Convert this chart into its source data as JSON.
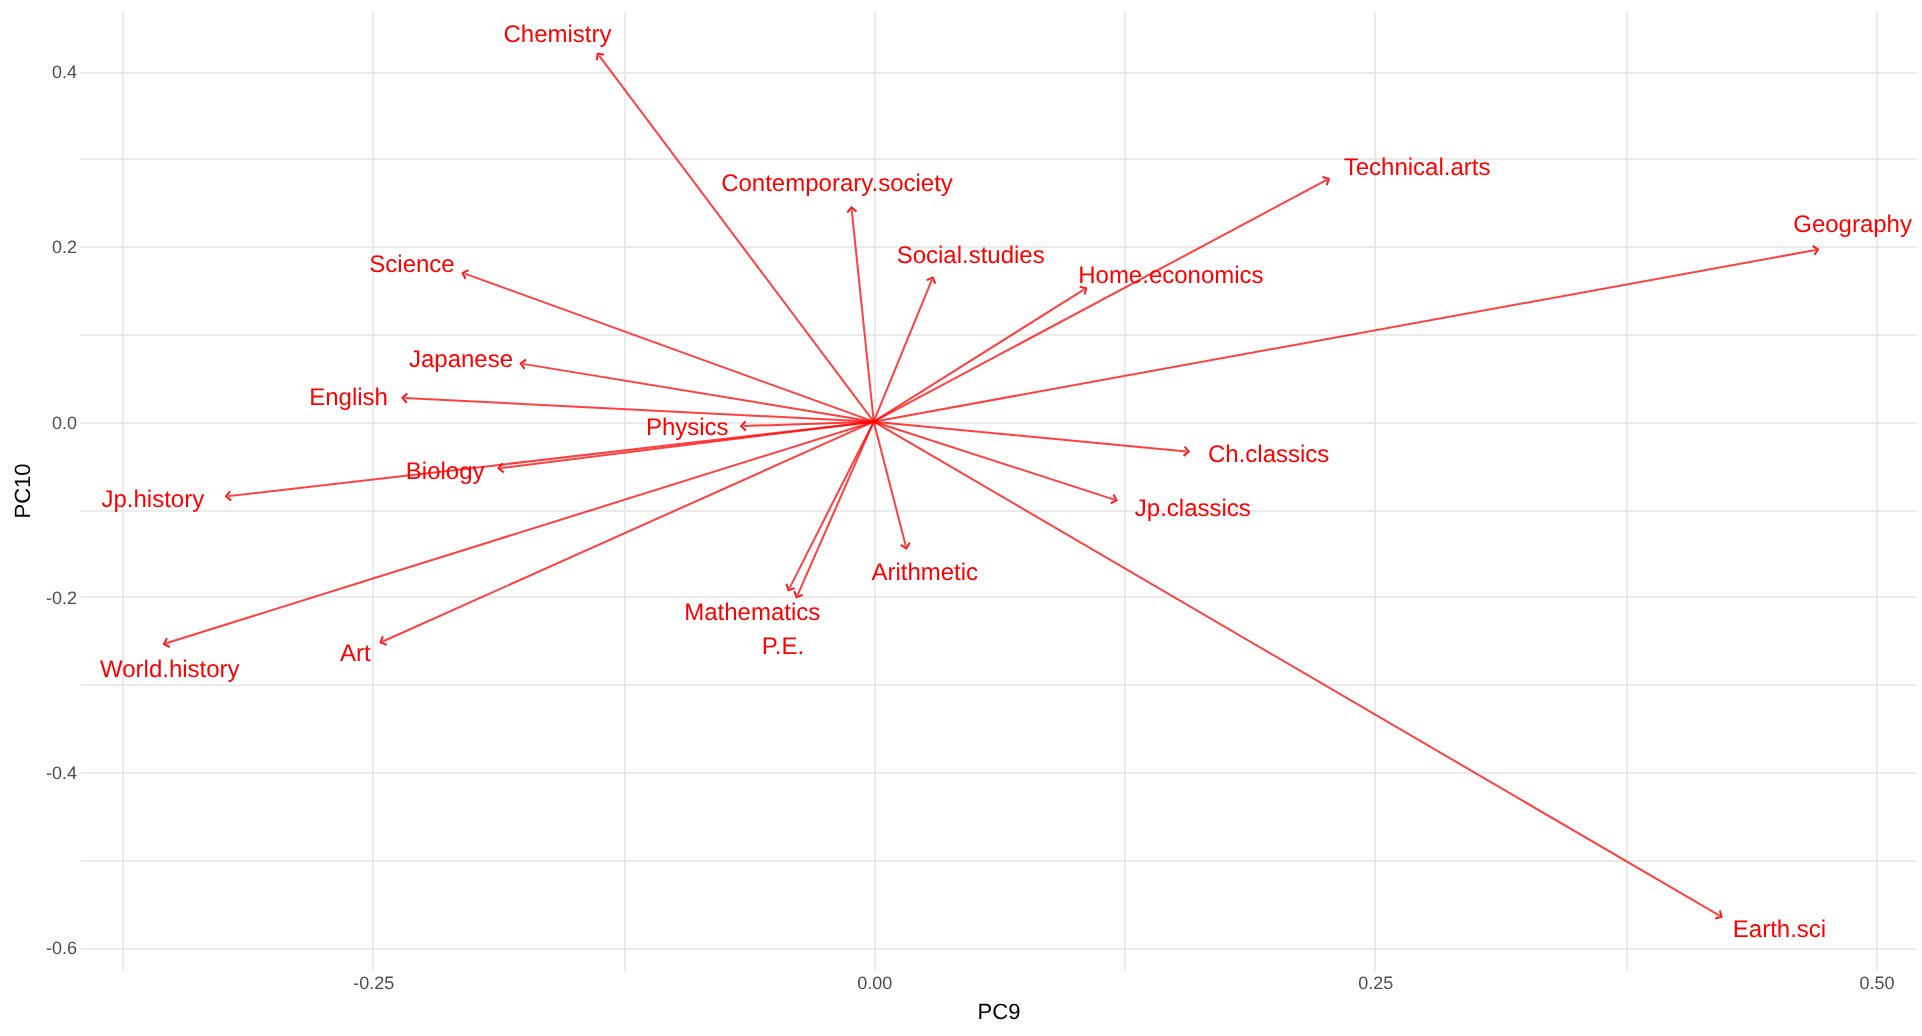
{
  "chart_data": {
    "type": "scatter",
    "xlabel": "PC9",
    "ylabel": "PC10",
    "xlim": [
      -0.396,
      0.52
    ],
    "ylim": [
      -0.626,
      0.47
    ],
    "xticks": [
      {
        "value": -0.375,
        "label": null
      },
      {
        "value": -0.25,
        "label": "-0.25"
      },
      {
        "value": -0.125,
        "label": null
      },
      {
        "value": 0,
        "label": "0.00"
      },
      {
        "value": 0.125,
        "label": null
      },
      {
        "value": 0.25,
        "label": "0.25"
      },
      {
        "value": 0.375,
        "label": null
      },
      {
        "value": 0.5,
        "label": "0.50"
      }
    ],
    "yticks": [
      {
        "value": -0.6,
        "label": "-0.6"
      },
      {
        "value": -0.5,
        "label": null
      },
      {
        "value": -0.4,
        "label": "-0.4"
      },
      {
        "value": -0.3,
        "label": null
      },
      {
        "value": -0.2,
        "label": "-0.2"
      },
      {
        "value": -0.1,
        "label": null
      },
      {
        "value": 0,
        "label": "0.0"
      },
      {
        "value": 0.1,
        "label": null
      },
      {
        "value": 0.2,
        "label": "0.2"
      },
      {
        "value": 0.3,
        "label": null
      },
      {
        "value": 0.4,
        "label": "0.4"
      }
    ],
    "grid": true,
    "series": [
      {
        "color": "#ff0000",
        "x": [
          -0.137,
          -0.011,
          0.029,
          0.226,
          0.47,
          0.105,
          -0.204,
          -0.175,
          -0.234,
          -0.065,
          -0.186,
          -0.322,
          -0.353,
          -0.245,
          -0.042,
          -0.038,
          0.016,
          0.156,
          0.12,
          0.422
        ],
        "values": [
          0.418,
          0.242,
          0.162,
          0.276,
          0.196,
          0.151,
          0.169,
          0.066,
          0.027,
          -0.005,
          -0.053,
          -0.085,
          -0.253,
          -0.251,
          -0.19,
          -0.198,
          -0.142,
          -0.034,
          -0.089,
          -0.564
        ],
        "value_labels": [
          "Chemistry",
          "Contemporary.society",
          "Social.studies",
          "Technical.arts",
          "Geography",
          "Home.economics",
          "Science",
          "Japanese",
          "English",
          "Physics",
          "Biology",
          "Jp.history",
          "World.history",
          "Art",
          "Mathematics",
          "P.E.",
          "Arithmetic",
          "Ch.classics",
          "Jp.classics",
          "Earth.sci"
        ]
      }
    ]
  }
}
